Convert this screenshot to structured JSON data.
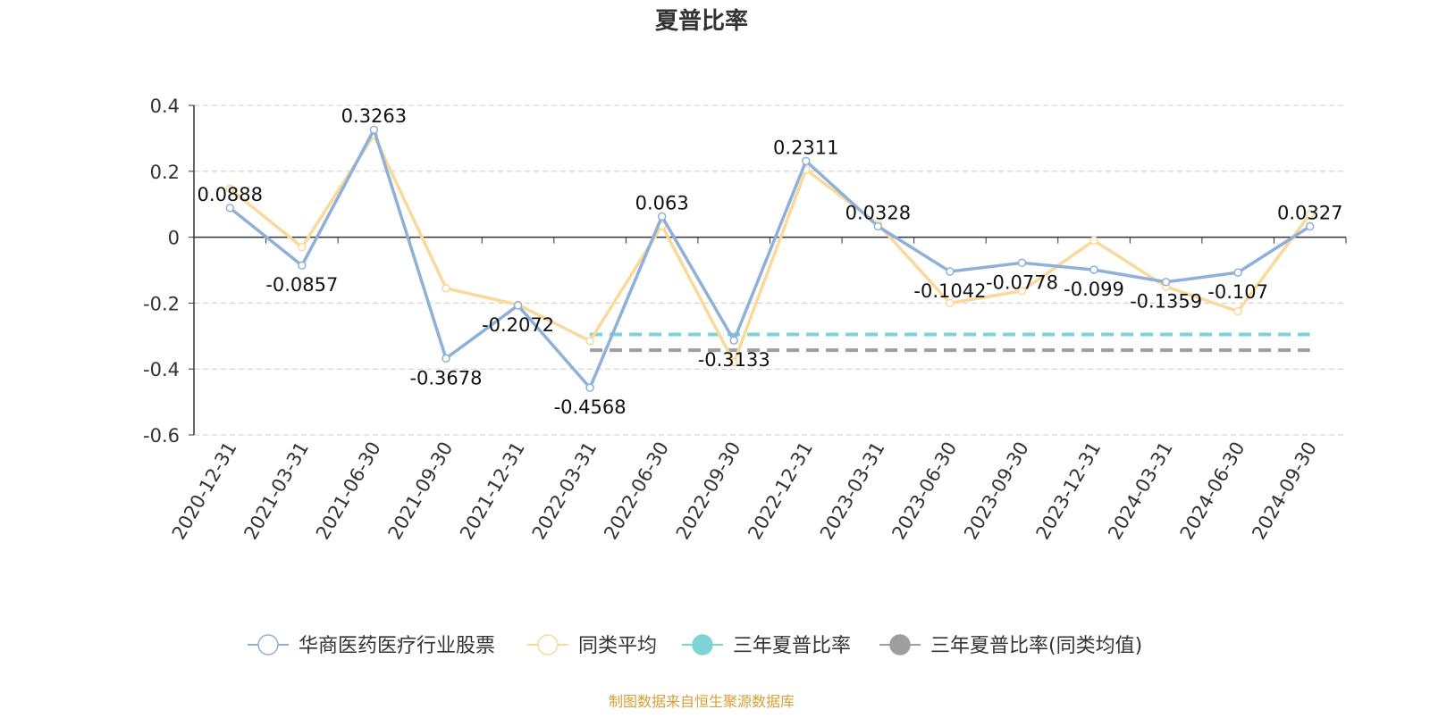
{
  "chart_data": {
    "type": "line",
    "title": "夏普比率",
    "x": [
      "2020-12-31",
      "2021-03-31",
      "2021-06-30",
      "2021-09-30",
      "2021-12-31",
      "2022-03-31",
      "2022-06-30",
      "2022-09-30",
      "2022-12-31",
      "2023-03-31",
      "2023-06-30",
      "2023-09-30",
      "2023-12-31",
      "2024-03-31",
      "2024-06-30",
      "2024-09-30"
    ],
    "ylim": [
      -0.6,
      0.4
    ],
    "yticks": [
      0.4,
      0.2,
      0,
      -0.2,
      -0.4,
      -0.6
    ],
    "grid": true,
    "legend_position": "bottom",
    "series": [
      {
        "name": "华商医药医疗行业股票",
        "color": "#8eb0d9",
        "values": [
          0.0888,
          -0.0857,
          0.3263,
          -0.3678,
          -0.2072,
          -0.4568,
          0.063,
          -0.3133,
          0.2311,
          0.0328,
          -0.1042,
          -0.0778,
          -0.099,
          -0.1359,
          -0.107,
          0.0327
        ],
        "labels": [
          "0.0888",
          "-0.0857",
          "0.3263",
          "-0.3678",
          "-0.2072",
          "-0.4568",
          "0.063",
          "-0.3133",
          "0.2311",
          "0.0328",
          "-0.1042",
          "-0.0778",
          "-0.099",
          "-0.1359",
          "-0.107",
          "0.0327"
        ]
      },
      {
        "name": "同类平均",
        "color": "#fad99a",
        "values": [
          0.147,
          -0.03,
          0.31,
          -0.155,
          -0.205,
          -0.315,
          0.035,
          -0.38,
          0.205,
          0.04,
          -0.2,
          -0.163,
          -0.01,
          -0.15,
          -0.225,
          0.07
        ]
      },
      {
        "name": "三年夏普比率",
        "color": "#7dd3d5",
        "dashed": true,
        "x_range": [
          "2022-03-31",
          "2024-09-30"
        ],
        "value": -0.295
      },
      {
        "name": "三年夏普比率(同类均值)",
        "color": "#9e9e9e",
        "dashed": true,
        "x_range": [
          "2022-03-31",
          "2024-09-30"
        ],
        "value": -0.343
      }
    ]
  },
  "source_text": "制图数据来自恒生聚源数据库",
  "colors": {
    "axis": "#333333",
    "grid": "#cccccc",
    "source": "#d4a039",
    "title": "#333333"
  }
}
